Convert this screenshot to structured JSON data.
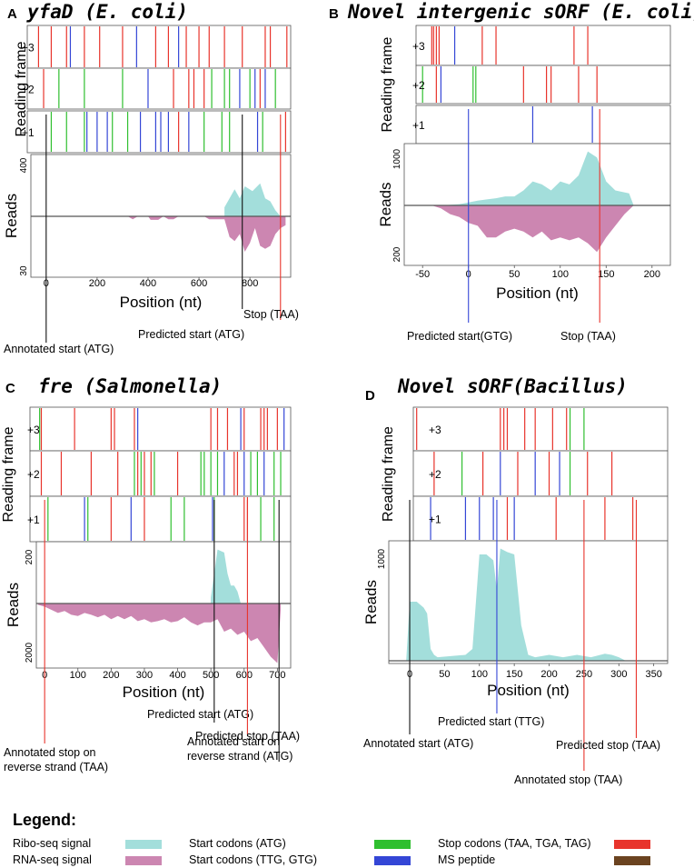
{
  "colors": {
    "ribo": "#a3dedb",
    "rna": "#cc86b1",
    "start_atg": "#2fbf2f",
    "start_ttg_gtg": "#3446d6",
    "stop": "#e8342c",
    "ms_peptide": "#6b4320",
    "guide_black": "#111111",
    "zero_line": "#555555"
  },
  "frame_labels": [
    "+3",
    "+2",
    "+1"
  ],
  "chart_data": [
    {
      "type": "area",
      "panel_letter": "A",
      "title": "yfaD (E. coli)",
      "ylabel": "Reads",
      "frame_ylabel": "Reading frame",
      "xlabel": "Position (nt)",
      "xlim": [
        -60,
        960
      ],
      "xticks": [
        0,
        200,
        400,
        600,
        800
      ],
      "ylim_top": 400,
      "ylim_bottom": 30,
      "ytick_top_label": "400",
      "ytick_bottom_label": "30",
      "ribo": {
        "x": [
          700,
          740,
          760,
          780,
          810,
          840,
          860,
          880,
          900,
          920
        ],
        "y": [
          0.15,
          0.45,
          0.3,
          0.5,
          0.42,
          0.55,
          0.3,
          0.25,
          0.1,
          0
        ]
      },
      "rna": {
        "x": [
          320,
          340,
          360,
          380,
          400,
          410,
          420,
          440,
          460,
          480,
          500,
          520,
          540,
          560,
          580,
          600,
          620,
          640,
          660,
          680,
          700,
          720,
          740,
          760,
          780,
          800,
          820,
          840,
          860,
          880,
          900,
          920,
          940
        ],
        "y": [
          0,
          0.05,
          0,
          0,
          0,
          0.06,
          0.06,
          0.06,
          0,
          0.05,
          0.05,
          0,
          0,
          0,
          0,
          0,
          0,
          0.05,
          0.05,
          0.05,
          0.05,
          0.35,
          0.42,
          0.3,
          0.6,
          0.45,
          0.2,
          0.5,
          0.55,
          0.5,
          0.3,
          0.2,
          0.15
        ]
      },
      "frames": {
        "+3": {
          "atg": [],
          "ttg": [
            95,
            355,
            520
          ],
          "stop": [
            -30,
            20,
            80,
            150,
            210,
            300,
            430,
            480,
            550,
            600,
            640,
            700,
            770,
            860,
            880,
            945
          ]
        },
        "+2": {
          "atg": [
            50,
            150,
            300,
            650,
            700,
            720,
            800,
            900
          ],
          "ttg": [
            400,
            760,
            820,
            860
          ],
          "stop": [
            -10,
            500,
            560,
            580,
            620,
            840
          ]
        },
        "+1": {
          "atg": [
            20,
            80,
            150,
            260,
            320,
            620,
            690,
            720,
            850
          ],
          "ttg": [
            160,
            200,
            240,
            370,
            430,
            450,
            480,
            560,
            830
          ],
          "stop": [
            520,
            940
          ]
        }
      },
      "guides": [
        {
          "label": "Annotated start (ATG)",
          "x": 0,
          "color": "guide_black",
          "label_lines": [
            "Annotated start (ATG)"
          ]
        },
        {
          "label": "Predicted start (ATG)",
          "x": 770,
          "color": "guide_black",
          "label_lines": [
            "Predicted start (ATG)"
          ]
        },
        {
          "label": "Stop (TAA)",
          "x": 920,
          "color": "stop",
          "label_lines": [
            "Stop (TAA)"
          ]
        }
      ]
    },
    {
      "type": "area",
      "panel_letter": "B",
      "title": "Novel intergenic sORF (E. coli)",
      "ylabel": "Reads",
      "frame_ylabel": "Reading frame",
      "xlabel": "Position (nt)",
      "xlim": [
        -70,
        220
      ],
      "xticks": [
        -50,
        0,
        50,
        100,
        150,
        200
      ],
      "ylim_top": 1000,
      "ylim_bottom": 200,
      "ytick_top_label": "1000",
      "ytick_bottom_label": "200",
      "ribo": {
        "x": [
          -30,
          -10,
          0,
          10,
          20,
          30,
          40,
          50,
          60,
          70,
          80,
          90,
          100,
          110,
          120,
          130,
          140,
          150,
          160,
          175,
          180
        ],
        "y": [
          0,
          0.02,
          0.05,
          0.08,
          0.1,
          0.12,
          0.15,
          0.15,
          0.25,
          0.4,
          0.35,
          0.25,
          0.4,
          0.35,
          0.5,
          0.9,
          0.8,
          0.4,
          0.25,
          0.2,
          0
        ]
      },
      "rna": {
        "x": [
          -40,
          -30,
          -20,
          -10,
          0,
          10,
          20,
          30,
          40,
          50,
          60,
          70,
          80,
          90,
          100,
          110,
          120,
          130,
          140,
          150,
          160,
          170,
          180
        ],
        "y": [
          0,
          0.05,
          0.15,
          0.2,
          0.3,
          0.35,
          0.55,
          0.55,
          0.45,
          0.4,
          0.45,
          0.55,
          0.45,
          0.6,
          0.55,
          0.6,
          0.55,
          0.65,
          0.8,
          0.55,
          0.35,
          0.15,
          0
        ]
      },
      "frames": {
        "+3": {
          "atg": [],
          "ttg": [
            -15
          ],
          "stop": [
            -40,
            -38,
            -35,
            -32,
            15,
            30,
            115,
            130
          ]
        },
        "+2": {
          "atg": [
            -50,
            5,
            8
          ],
          "ttg": [
            -30
          ],
          "stop": [
            -35,
            60,
            85,
            90,
            120,
            140
          ]
        },
        "+1": {
          "atg": [],
          "ttg": [
            70,
            135
          ],
          "stop": []
        }
      },
      "guides": [
        {
          "label": "Predicted start(GTG)",
          "x": 0,
          "color": "start_ttg_gtg",
          "label_lines": [
            "Predicted start(GTG)"
          ]
        },
        {
          "label": "Stop (TAA)",
          "x": 143,
          "color": "stop",
          "label_lines": [
            "Stop (TAA)"
          ]
        }
      ]
    },
    {
      "type": "area",
      "panel_letter": "C",
      "title": "fre (Salmonella)",
      "ylabel": "Reads",
      "frame_ylabel": "Reading frame",
      "xlabel": "Position (nt)",
      "xlim": [
        -25,
        740
      ],
      "xticks": [
        0,
        100,
        200,
        300,
        400,
        500,
        600,
        700
      ],
      "ylim_top": 200,
      "ylim_bottom": 2000,
      "ytick_top_label": "200",
      "ytick_bottom_label": "2000",
      "ribo": {
        "x": [
          500,
          510,
          520,
          540,
          550,
          560,
          570,
          580,
          590
        ],
        "y": [
          0.1,
          0.5,
          0.9,
          0.85,
          0.5,
          0.3,
          0.3,
          0.2,
          0
        ]
      },
      "rna": {
        "x": [
          -20,
          0,
          20,
          40,
          60,
          80,
          100,
          120,
          140,
          160,
          180,
          200,
          220,
          240,
          260,
          280,
          300,
          320,
          340,
          360,
          380,
          400,
          420,
          440,
          460,
          480,
          500,
          520,
          540,
          560,
          580,
          600,
          620,
          640,
          660,
          680,
          700,
          710
        ],
        "y": [
          0.02,
          0.05,
          0.1,
          0.15,
          0.12,
          0.18,
          0.2,
          0.15,
          0.18,
          0.22,
          0.18,
          0.25,
          0.2,
          0.25,
          0.2,
          0.28,
          0.25,
          0.3,
          0.28,
          0.25,
          0.3,
          0.28,
          0.22,
          0.3,
          0.35,
          0.3,
          0.3,
          0.25,
          0.45,
          0.4,
          0.5,
          0.45,
          0.6,
          0.55,
          0.7,
          0.85,
          0.95,
          0.1
        ]
      },
      "frames": {
        "+3": {
          "atg": [
            -15
          ],
          "ttg": [
            280,
            590,
            720
          ],
          "stop": [
            -10,
            90,
            200,
            210,
            270,
            500,
            520,
            550,
            600,
            650,
            660,
            670,
            700
          ]
        },
        "+2": {
          "atg": [
            270,
            290,
            330,
            470,
            480,
            500,
            520,
            620,
            640,
            690,
            710
          ],
          "ttg": [
            540,
            600,
            660
          ],
          "stop": [
            -10,
            50,
            140,
            220,
            280,
            300,
            320,
            400,
            570,
            580
          ]
        },
        "+1": {
          "atg": [
            10,
            130,
            380,
            420,
            510,
            650,
            690
          ],
          "ttg": [
            120,
            260,
            505
          ],
          "stop": [
            200,
            300,
            600,
            610
          ]
        }
      },
      "guides": [
        {
          "label": "Annotated stop on reverse strand (TAA)",
          "x": 0,
          "color": "stop",
          "label_lines": [
            "Annotated stop on",
            "reverse strand (TAA)"
          ]
        },
        {
          "label": "Predicted start (ATG)",
          "x": 510,
          "color": "guide_black",
          "label_lines": [
            "Predicted start (ATG)"
          ]
        },
        {
          "label": "Predicted stop (TAA)",
          "x": 610,
          "color": "stop",
          "label_lines": [
            "Predicted stop (TAA)"
          ]
        },
        {
          "label": "Annotated start on reverse strand (ATG)",
          "x": 705,
          "color": "guide_black",
          "label_lines": [
            "Annotated start on",
            "reverse strand (ATG)"
          ]
        }
      ]
    },
    {
      "type": "area",
      "panel_letter": "D",
      "title": "Novel sORF(Bacillus)",
      "ylabel": "Reads",
      "frame_ylabel": "Reading frame",
      "xlabel": "Position (nt)",
      "xlim": [
        -30,
        370
      ],
      "xticks": [
        0,
        50,
        100,
        150,
        200,
        250,
        300,
        350
      ],
      "ylim_top": 1000,
      "ylim_bottom": null,
      "ytick_top_label": "1000",
      "ytick_bottom_label": "",
      "ribo": {
        "x": [
          -5,
          0,
          10,
          20,
          25,
          30,
          35,
          40,
          80,
          90,
          100,
          110,
          120,
          125,
          130,
          140,
          150,
          160,
          170,
          180,
          200,
          220,
          240,
          260,
          280,
          290,
          300,
          310
        ],
        "y": [
          0,
          0.5,
          0.5,
          0.45,
          0.4,
          0.1,
          0.05,
          0.03,
          0.05,
          0.1,
          0.9,
          0.9,
          0.85,
          0.6,
          0.95,
          0.92,
          0.9,
          0.3,
          0.05,
          0.03,
          0.05,
          0.03,
          0.05,
          0.03,
          0.06,
          0.05,
          0.03,
          0
        ]
      },
      "rna": {
        "x": [],
        "y": []
      },
      "frames": {
        "+3": {
          "atg": [
            230,
            250
          ],
          "ttg": [],
          "stop": [
            10,
            130,
            135,
            140,
            165,
            180,
            205,
            225
          ]
        },
        "+2": {
          "atg": [
            75,
            230
          ],
          "ttg": [
            130,
            180,
            215
          ],
          "stop": [
            35,
            105,
            155,
            200,
            255,
            290
          ]
        },
        "+1": {
          "atg": [],
          "ttg": [
            30,
            80,
            100,
            120,
            150
          ],
          "stop": [
            140,
            210,
            280,
            320
          ]
        }
      },
      "guides": [
        {
          "label": "Annotated start (ATG)",
          "x": 0,
          "color": "guide_black",
          "label_lines": [
            "Annotated start (ATG)"
          ]
        },
        {
          "label": "Predicted start (TTG)",
          "x": 125,
          "color": "start_ttg_gtg",
          "label_lines": [
            "Predicted start (TTG)"
          ]
        },
        {
          "label": "Annotated stop (TAA)",
          "x": 250,
          "color": "stop",
          "label_lines": [
            "Annotated stop (TAA)"
          ]
        },
        {
          "label": "Predicted stop (TAA)",
          "x": 325,
          "color": "stop",
          "label_lines": [
            "Predicted stop (TAA)"
          ]
        }
      ]
    }
  ],
  "legend": {
    "title": "Legend:",
    "items": [
      {
        "label": "Ribo-seq signal",
        "color": "ribo"
      },
      {
        "label": "RNA-seq signal",
        "color": "rna"
      },
      {
        "label": "Start codons (ATG)",
        "color": "start_atg"
      },
      {
        "label": "Start codons (TTG, GTG)",
        "color": "start_ttg_gtg"
      },
      {
        "label": "Stop codons (TAA, TGA, TAG)",
        "color": "stop"
      },
      {
        "label": "MS peptide",
        "color": "ms_peptide"
      }
    ]
  }
}
